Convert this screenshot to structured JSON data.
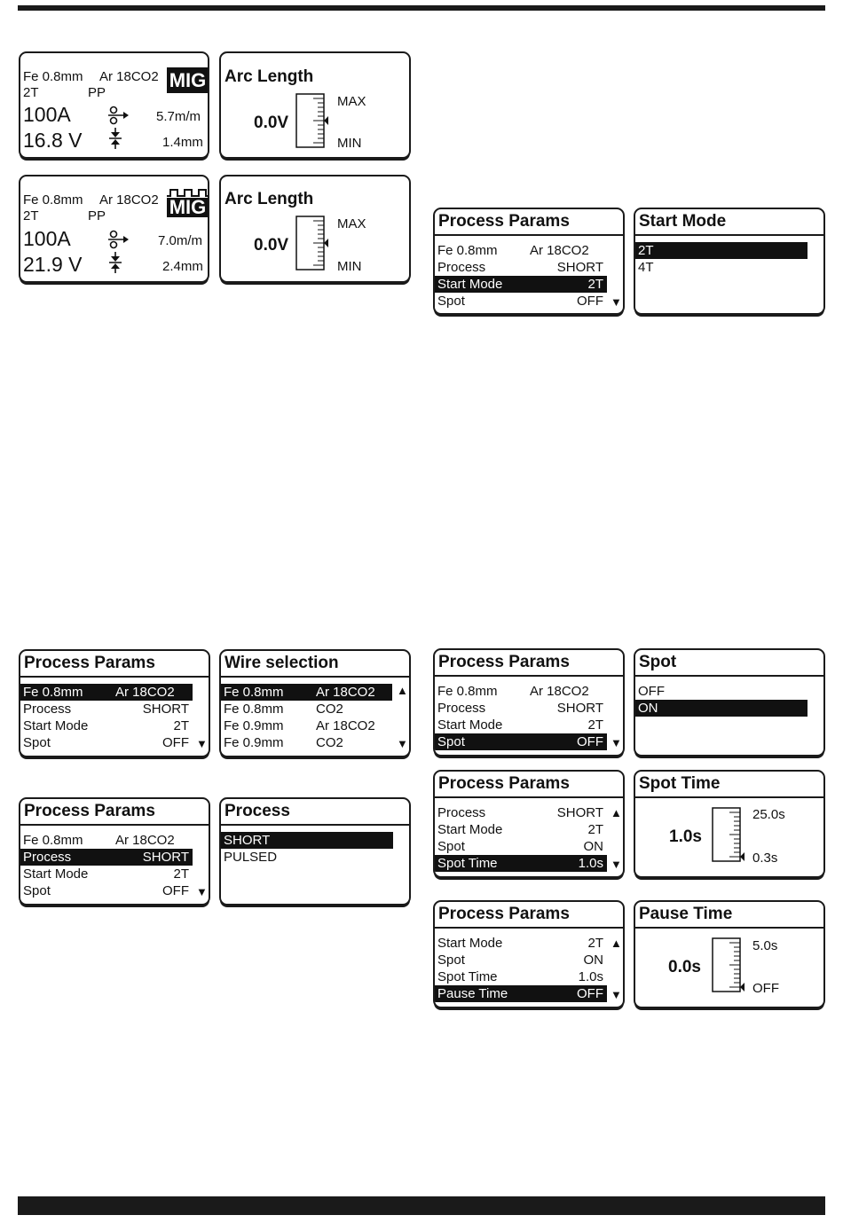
{
  "colors": {
    "ink": "#1a1a1a",
    "background": "#ffffff"
  },
  "icons": [
    "wire-feed-icon",
    "electrode-stickout-icon",
    "gauge-pointer-icon",
    "scroll-up-arrow-icon",
    "scroll-down-arrow-icon",
    "pulsed-wave-icon"
  ],
  "mig_short": {
    "material": "Fe 0.8mm",
    "gas": "Ar 18CO2",
    "badge": "MIG",
    "mode": "2T",
    "torch": "PP",
    "current": "100A",
    "voltage": "16.8 V",
    "wire_speed": "5.7m/m",
    "stickout": "1.4mm"
  },
  "mig_pulsed": {
    "material": "Fe 0.8mm",
    "gas": "Ar 18CO2",
    "badge": "MIG",
    "mode": "2T",
    "torch": "PP",
    "current": "100A",
    "voltage": "21.9 V",
    "wire_speed": "7.0m/m",
    "stickout": "2.4mm"
  },
  "arc_length_1": {
    "title": "Arc Length",
    "value": "0.0V",
    "max": "MAX",
    "min": "MIN",
    "level": 0.5
  },
  "arc_length_2": {
    "title": "Arc Length",
    "value": "0.0V",
    "max": "MAX",
    "min": "MIN",
    "level": 0.5
  },
  "pp_start": {
    "title": "Process Params",
    "rows": [
      {
        "label": "Fe 0.8mm",
        "value": "Ar 18CO2"
      },
      {
        "label": "Process",
        "value": "SHORT"
      },
      {
        "label": "Start Mode",
        "value": "2T"
      },
      {
        "label": "Spot",
        "value": "OFF"
      }
    ]
  },
  "start_mode": {
    "title": "Start Mode",
    "options": [
      "2T",
      "4T"
    ]
  },
  "pp_wire": {
    "title": "Process Params",
    "rows": [
      {
        "label": "Fe 0.8mm",
        "value": "Ar 18CO2"
      },
      {
        "label": "Process",
        "value": "SHORT"
      },
      {
        "label": "Start Mode",
        "value": "2T"
      },
      {
        "label": "Spot",
        "value": "OFF"
      }
    ]
  },
  "wire_selection": {
    "title": "Wire selection",
    "rows": [
      {
        "label": "Fe 0.8mm",
        "value": "Ar 18CO2"
      },
      {
        "label": "Fe 0.8mm",
        "value": "CO2"
      },
      {
        "label": "Fe 0.9mm",
        "value": "Ar 18CO2"
      },
      {
        "label": "Fe 0.9mm",
        "value": "CO2"
      }
    ]
  },
  "pp_process": {
    "title": "Process Params",
    "rows": [
      {
        "label": "Fe 0.8mm",
        "value": "Ar 18CO2"
      },
      {
        "label": "Process",
        "value": "SHORT"
      },
      {
        "label": "Start Mode",
        "value": "2T"
      },
      {
        "label": "Spot",
        "value": "OFF"
      }
    ]
  },
  "process": {
    "title": "Process",
    "options": [
      "SHORT",
      "PULSED"
    ]
  },
  "pp_spot": {
    "title": "Process Params",
    "rows": [
      {
        "label": "Fe 0.8mm",
        "value": "Ar 18CO2"
      },
      {
        "label": "Process",
        "value": "SHORT"
      },
      {
        "label": "Start Mode",
        "value": "2T"
      },
      {
        "label": "Spot",
        "value": "OFF"
      }
    ]
  },
  "spot": {
    "title": "Spot",
    "options": [
      "OFF",
      "ON"
    ]
  },
  "pp_spot_time": {
    "title": "Process Params",
    "rows": [
      {
        "label": "Process",
        "value": "SHORT"
      },
      {
        "label": "Start Mode",
        "value": "2T"
      },
      {
        "label": "Spot",
        "value": "ON"
      },
      {
        "label": "Spot Time",
        "value": "1.0s"
      }
    ]
  },
  "spot_time": {
    "title": "Spot Time",
    "value": "1.0s",
    "max": "25.0s",
    "min": "0.3s",
    "level": 0.0
  },
  "pp_pause_time": {
    "title": "Process Params",
    "rows": [
      {
        "label": "Start Mode",
        "value": "2T"
      },
      {
        "label": "Spot",
        "value": "ON"
      },
      {
        "label": "Spot Time",
        "value": "1.0s"
      },
      {
        "label": "Pause Time",
        "value": "OFF"
      }
    ]
  },
  "pause_time": {
    "title": "Pause Time",
    "value": "0.0s",
    "max": "5.0s",
    "min": "OFF",
    "level": 0.0
  }
}
